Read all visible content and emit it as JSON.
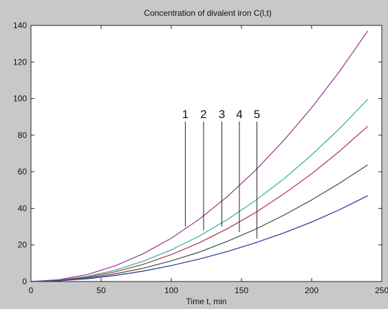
{
  "chart_data": {
    "type": "line",
    "title": "Concentration of divalent iron C(l,t)",
    "xlabel": "Time t, min",
    "ylabel": "",
    "xlim": [
      0,
      250
    ],
    "ylim": [
      0,
      140
    ],
    "x_ticks": [
      0,
      50,
      100,
      150,
      200,
      250
    ],
    "y_ticks": [
      0,
      20,
      40,
      60,
      80,
      100,
      120,
      140
    ],
    "grid": false,
    "background": "#c8c8c8",
    "plot_background": "#ffffff",
    "x": [
      0,
      20,
      40,
      60,
      80,
      100,
      120,
      140,
      160,
      180,
      200,
      220,
      240
    ],
    "series": [
      {
        "name": "1",
        "color": "#9a3f95",
        "values": [
          0,
          1.0,
          3.8,
          8.6,
          15.2,
          23.7,
          34.1,
          46.5,
          60.8,
          77.0,
          95.0,
          115.0,
          137.0
        ]
      },
      {
        "name": "2",
        "color": "#3fb0a0",
        "values": [
          0,
          0.7,
          2.8,
          6.2,
          11.1,
          17.3,
          24.9,
          33.9,
          44.3,
          56.0,
          69.2,
          83.7,
          99.6
        ]
      },
      {
        "name": "3",
        "color": "#b04045",
        "values": [
          0,
          0.6,
          2.4,
          5.3,
          9.4,
          14.7,
          21.2,
          28.9,
          37.7,
          47.8,
          58.9,
          71.3,
          84.9
        ]
      },
      {
        "name": "4",
        "color": "#3b5d4f",
        "values": [
          0,
          0.5,
          1.9,
          4.2,
          7.3,
          11.3,
          16.1,
          22.0,
          28.6,
          36.2,
          44.6,
          53.8,
          63.8
        ]
      },
      {
        "name": "5",
        "color": "#3a3aa0",
        "values": [
          0,
          0.4,
          1.5,
          3.3,
          5.7,
          8.7,
          12.3,
          16.4,
          21.2,
          26.5,
          32.5,
          39.3,
          46.9
        ]
      }
    ],
    "annotations": [
      {
        "label": "1",
        "x": 110,
        "y_from": 30,
        "y_to": 170
      },
      {
        "label": "2",
        "x": 123,
        "y_from": 28,
        "y_to": 170
      },
      {
        "label": "3",
        "x": 136,
        "y_from": 30,
        "y_to": 170
      },
      {
        "label": "4",
        "x": 148.5,
        "y_from": 27,
        "y_to": 170
      },
      {
        "label": "5",
        "x": 161,
        "y_from": 23.5,
        "y_to": 170
      }
    ]
  }
}
